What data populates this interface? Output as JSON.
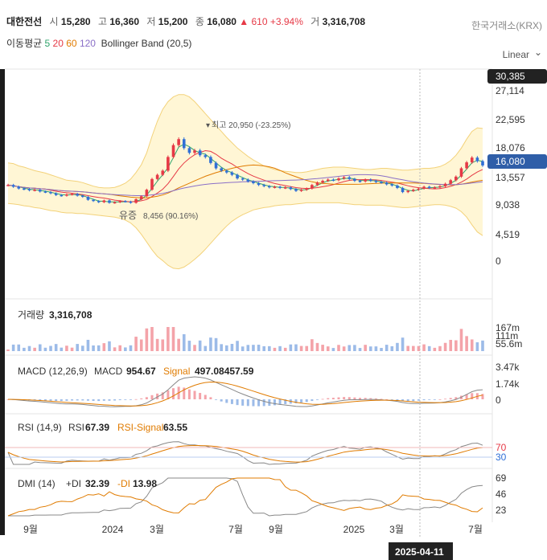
{
  "header": {
    "name": "대한전선",
    "open_label": "시",
    "open": "15,280",
    "high_label": "고",
    "high": "16,360",
    "low_label": "저",
    "low": "15,200",
    "close_label": "종",
    "close": "16,080",
    "change": "▲ 610 +3.94%",
    "volume_label": "거",
    "volume": "3,316,708",
    "exchange": "한국거래소(KRX)"
  },
  "indicators": {
    "ma_label": "이동평균",
    "ma5": "5",
    "ma20": "20",
    "ma60": "60",
    "ma120": "120",
    "bollinger": "Bollinger Band (20,5)"
  },
  "scale": {
    "label": "Linear",
    "icon": "chevron-down-icon"
  },
  "colors": {
    "up": "#e63946",
    "down": "#2f6fd6",
    "band": "#fff6d5",
    "ma5": "#2fa36b",
    "ma20": "#e63946",
    "ma60": "#e07b00",
    "ma120": "#8a6fc7"
  },
  "chart_data": [
    {
      "type": "candlestick",
      "yaxis_ticks": [
        "27,114",
        "22,595",
        "18,076",
        "13,557",
        "9,038",
        "4,519",
        "0"
      ],
      "max_label": "30,385",
      "last_label": "16,080",
      "annotation_high": "최고 20,950 (-23.25%)",
      "annotation_low_prefix": "유증",
      "annotation_low": "8,456 (90.16%)",
      "x_ticks": [
        "9월",
        "2024",
        "3월",
        "7월",
        "9월",
        "2025",
        "3월",
        "7월"
      ],
      "crosshair_date": "2025-04-11",
      "close": [
        12800,
        12500,
        12200,
        12100,
        11900,
        12000,
        11700,
        11600,
        11400,
        11100,
        11000,
        11200,
        11300,
        11000,
        10800,
        10300,
        10100,
        9900,
        10200,
        9800,
        9900,
        10100,
        10000,
        9800,
        10400,
        10900,
        12000,
        13800,
        14500,
        15200,
        17500,
        19500,
        20500,
        19000,
        18200,
        18600,
        17800,
        17500,
        16500,
        15600,
        15200,
        14900,
        14500,
        13900,
        13700,
        13400,
        13100,
        12800,
        12600,
        12400,
        12500,
        12300,
        12400,
        12100,
        11800,
        12000,
        12200,
        12800,
        13200,
        13500,
        13700,
        13600,
        13900,
        14100,
        13800,
        13500,
        13400,
        13700,
        13500,
        13300,
        13200,
        12900,
        12700,
        12300,
        11600,
        11800,
        12000,
        12200,
        12500,
        12300,
        12400,
        12600,
        13000,
        13600,
        14200,
        15600,
        16600,
        17400,
        16800,
        16080
      ],
      "bollinger_upper": [
        16500,
        16400,
        16000,
        15800,
        15500,
        15200,
        15000,
        14800,
        14500,
        14200,
        13900,
        13600,
        13500,
        13400,
        13200,
        12900,
        12600,
        12400,
        12300,
        12300,
        12400,
        12700,
        13100,
        13800,
        14900,
        16200,
        18200,
        21000,
        23500,
        25500,
        26800,
        27600,
        28000,
        28000,
        27600,
        26800,
        25800,
        24800,
        23800,
        22800,
        21800,
        20800,
        19900,
        19000,
        18300,
        17600,
        17000,
        16500,
        16000,
        15700,
        15400,
        15200,
        15100,
        15000,
        14900,
        14900,
        15000,
        15200,
        15400,
        15600,
        15700,
        15800,
        15800,
        15800,
        15700,
        15600,
        15500,
        15400,
        15400,
        15500,
        15600,
        15600,
        15500,
        15400,
        15300,
        15300,
        15400,
        15500,
        15600,
        15600,
        15700,
        15900,
        16300,
        16900,
        17800,
        19000,
        20500,
        21800,
        22400,
        22300
      ],
      "bollinger_lower": [
        9700,
        9600,
        9500,
        9300,
        9200,
        9000,
        8900,
        8700,
        8500,
        8400,
        8200,
        8100,
        8100,
        8000,
        8000,
        7900,
        7800,
        7700,
        7600,
        7500,
        7400,
        7200,
        6900,
        6400,
        5600,
        4500,
        3200,
        1900,
        800,
        100,
        -700,
        -1200,
        -1300,
        -1000,
        -400,
        300,
        1100,
        2000,
        3000,
        4000,
        5000,
        5900,
        6700,
        7300,
        7800,
        8200,
        8600,
        8800,
        9000,
        9100,
        9300,
        9400,
        9500,
        9500,
        9600,
        9700,
        9800,
        9800,
        9800,
        9800,
        9800,
        9800,
        9800,
        9700,
        9600,
        9500,
        9500,
        9400,
        9400,
        9400,
        9400,
        9300,
        9200,
        9100,
        9000,
        9000,
        9100,
        9200,
        9300,
        9400,
        9500,
        9500,
        9400,
        9200,
        8900,
        8300,
        7400,
        6100,
        4900,
        4300
      ]
    },
    {
      "type": "bar",
      "label": "거래량",
      "value": "3,316,708",
      "yaxis_ticks": [
        "167m",
        "111m",
        "55.6m"
      ]
    },
    {
      "type": "line",
      "label": "MACD (12,26,9)",
      "macd_label": "MACD",
      "macd": "954.67",
      "signal_label": "Signal",
      "signal": "497.08457.59",
      "yaxis_ticks": [
        "3.47k",
        "1.74k",
        "0"
      ]
    },
    {
      "type": "line",
      "label": "RSI (14,9)",
      "rsi_label": "RSI",
      "rsi": "67.39",
      "signal_label": "RSI-Signal",
      "signal": "63.55",
      "yaxis_ticks": [
        "70",
        "30"
      ]
    },
    {
      "type": "line",
      "label": "DMI (14)",
      "pdi_label": "+DI",
      "pdi": "32.39",
      "mdi_label": "-DI",
      "mdi": "13.98",
      "yaxis_ticks": [
        "69",
        "46",
        "23"
      ]
    }
  ]
}
